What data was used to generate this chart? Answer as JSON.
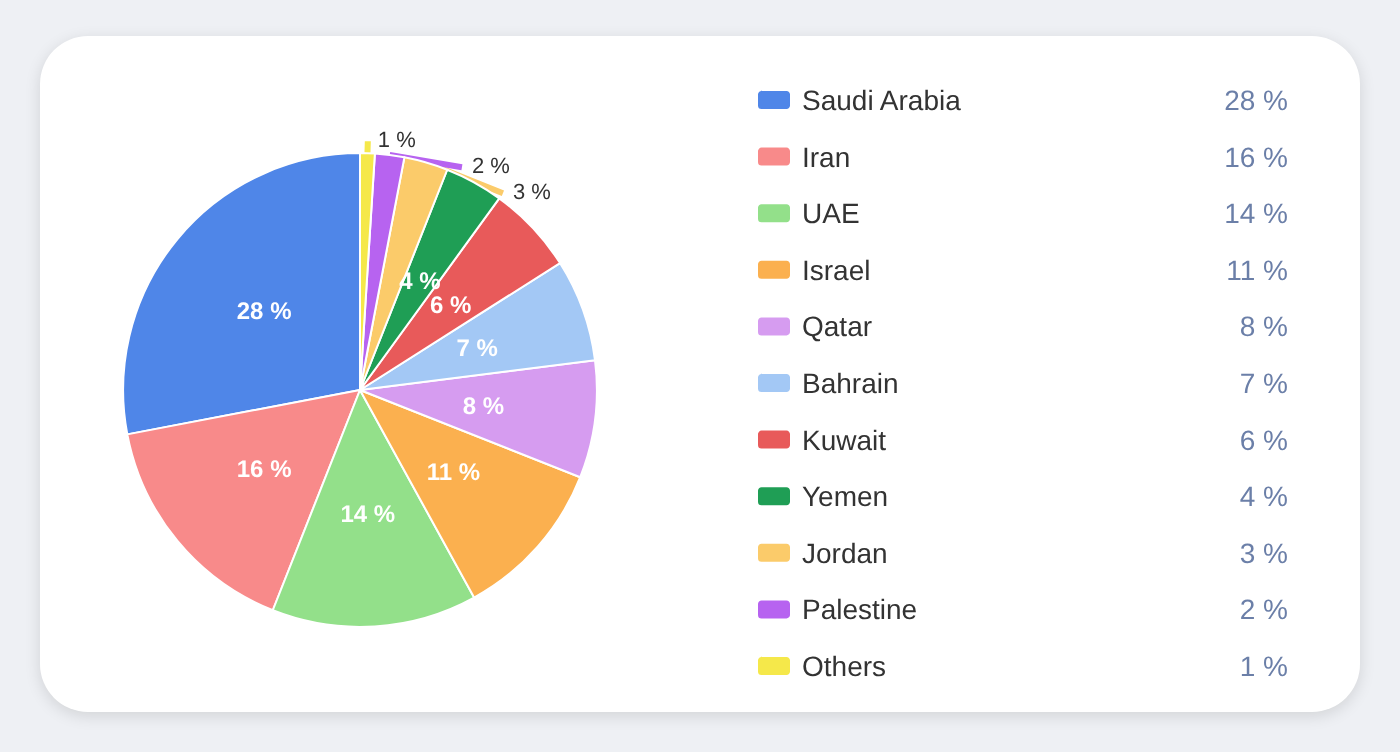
{
  "chart_data": {
    "type": "pie",
    "categories": [
      "Saudi Arabia",
      "Iran",
      "UAE",
      "Israel",
      "Qatar",
      "Bahrain",
      "Kuwait",
      "Yemen",
      "Jordan",
      "Palestine",
      "Others"
    ],
    "values": [
      28,
      16,
      14,
      11,
      8,
      7,
      6,
      4,
      3,
      2,
      1
    ],
    "value_labels": [
      "28 %",
      "16 %",
      "14 %",
      "11 %",
      "8 %",
      "7 %",
      "6 %",
      "4 %",
      "3 %",
      "2 %",
      "1 %"
    ],
    "colors": [
      "#4f86e8",
      "#f88a8a",
      "#93e08a",
      "#fbb04f",
      "#d69cf0",
      "#a3c8f5",
      "#e85a5a",
      "#1f9e55",
      "#fbcb6a",
      "#b763f0",
      "#f5e84a"
    ],
    "legend": "right"
  }
}
